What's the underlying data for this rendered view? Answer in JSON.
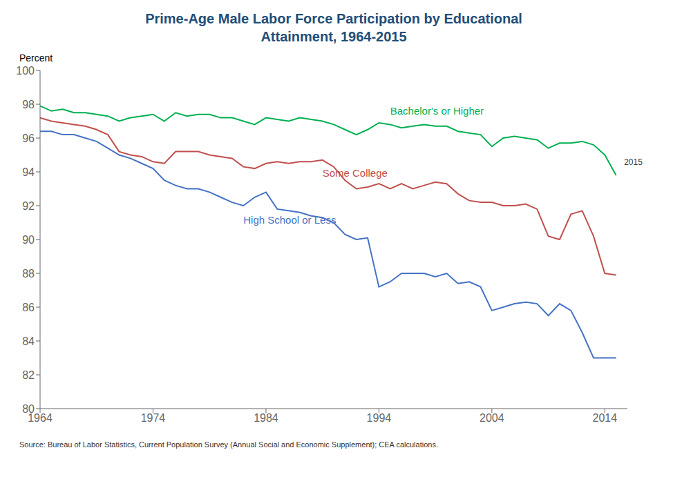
{
  "chart_data": {
    "type": "line",
    "title": "Prime-Age Male Labor Force Participation by Educational\nAttainment, 1964-2015",
    "y_label": "Percent",
    "source": "Source: Bureau of Labor Statistics, Current Population Survey (Annual Social and Economic Supplement); CEA calculations.",
    "title_color": "#1f4e79",
    "grid": false,
    "xlim": [
      1964,
      2016
    ],
    "ylim": [
      80,
      100
    ],
    "xticks": [
      1964,
      1974,
      1984,
      1994,
      2004,
      2014
    ],
    "yticks": [
      80,
      82,
      84,
      86,
      88,
      90,
      92,
      94,
      96,
      98,
      100
    ],
    "annotations": [
      {
        "text": "2015",
        "x": 2015.4,
        "y": 94.6
      }
    ],
    "x": [
      1964,
      1965,
      1966,
      1967,
      1968,
      1969,
      1970,
      1971,
      1972,
      1973,
      1974,
      1975,
      1976,
      1977,
      1978,
      1979,
      1980,
      1981,
      1982,
      1983,
      1984,
      1985,
      1986,
      1987,
      1988,
      1989,
      1990,
      1991,
      1992,
      1993,
      1994,
      1995,
      1996,
      1997,
      1998,
      1999,
      2000,
      2001,
      2002,
      2003,
      2004,
      2005,
      2006,
      2007,
      2008,
      2009,
      2010,
      2011,
      2012,
      2013,
      2014,
      2015
    ],
    "series": [
      {
        "name": "Bachelor's or Higher",
        "color": "#00b050",
        "values": [
          97.9,
          97.6,
          97.7,
          97.5,
          97.5,
          97.4,
          97.3,
          97.0,
          97.2,
          97.3,
          97.4,
          97.0,
          97.5,
          97.3,
          97.4,
          97.4,
          97.2,
          97.2,
          97.0,
          96.8,
          97.2,
          97.1,
          97.0,
          97.2,
          97.1,
          97.0,
          96.8,
          96.5,
          96.2,
          96.5,
          96.9,
          96.8,
          96.6,
          96.7,
          96.8,
          96.7,
          96.7,
          96.4,
          96.3,
          96.2,
          95.5,
          96.0,
          96.1,
          96.0,
          95.9,
          95.4,
          95.7,
          95.7,
          95.8,
          95.6,
          95.0,
          93.8
        ]
      },
      {
        "name": "Some College",
        "color": "#c0504d",
        "values": [
          97.2,
          97.0,
          96.9,
          96.8,
          96.7,
          96.5,
          96.2,
          95.2,
          95.0,
          94.9,
          94.6,
          94.5,
          95.2,
          95.2,
          95.2,
          95.0,
          94.9,
          94.8,
          94.3,
          94.2,
          94.5,
          94.6,
          94.5,
          94.6,
          94.6,
          94.7,
          94.3,
          93.5,
          93.0,
          93.1,
          93.3,
          93.0,
          93.3,
          93.0,
          93.2,
          93.4,
          93.3,
          92.7,
          92.3,
          92.2,
          92.2,
          92.0,
          92.0,
          92.1,
          91.8,
          90.2,
          90.0,
          91.5,
          91.7,
          90.2,
          88.0,
          87.9
        ]
      },
      {
        "name": "High School or Less",
        "color": "#4472c4",
        "values": [
          96.4,
          96.4,
          96.2,
          96.2,
          96.0,
          95.8,
          95.4,
          95.0,
          94.8,
          94.5,
          94.2,
          93.5,
          93.2,
          93.0,
          93.0,
          92.8,
          92.5,
          92.2,
          92.0,
          92.5,
          92.8,
          91.8,
          91.7,
          91.6,
          91.4,
          91.3,
          91.0,
          90.3,
          90.0,
          90.1,
          87.2,
          87.5,
          88.0,
          88.0,
          88.0,
          87.8,
          88.0,
          87.4,
          87.5,
          87.2,
          85.8,
          86.0,
          86.2,
          86.3,
          86.2,
          85.5,
          86.2,
          85.8,
          84.5,
          83.0,
          83.0,
          83.0
        ]
      }
    ]
  }
}
